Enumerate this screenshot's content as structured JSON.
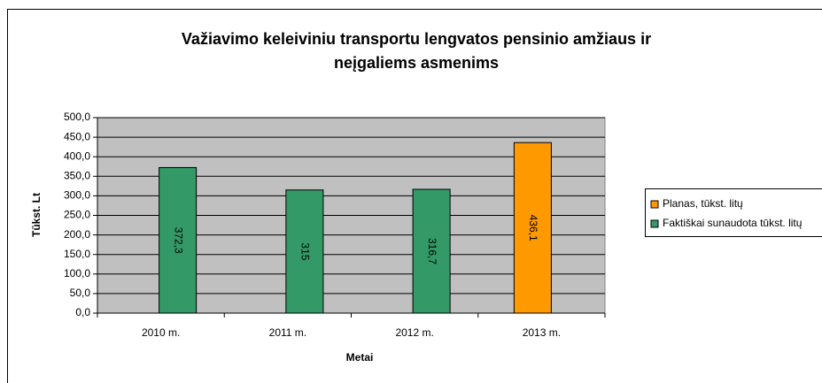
{
  "chart_data": {
    "type": "bar",
    "title": [
      "Važiavimo keleiviniu transportu lengvatos pensinio amžiaus ir",
      "neįgaliems asmenims"
    ],
    "x_label": "Metai",
    "y_label": "Tūkst. Lt",
    "categories": [
      "2010 m.",
      "2011 m.",
      "2012 m.",
      "2013 m."
    ],
    "series": [
      {
        "name": "Planas, tūkst. litų",
        "color": "#ff9900",
        "values": [
          null,
          null,
          null,
          436.1
        ],
        "value_labels": [
          null,
          null,
          null,
          "436,1"
        ]
      },
      {
        "name": "Faktiškai sunaudota tūkst. litų",
        "color": "#339966",
        "values": [
          372.3,
          315,
          316.7,
          null
        ],
        "value_labels": [
          "372,3",
          "315",
          "316,7",
          null
        ]
      }
    ],
    "ylim": [
      0,
      500
    ],
    "yticks": [
      {
        "value": 0,
        "label": "0,0"
      },
      {
        "value": 50,
        "label": "50,0"
      },
      {
        "value": 100,
        "label": "100,0"
      },
      {
        "value": 150,
        "label": "150,0"
      },
      {
        "value": 200,
        "label": "200,0"
      },
      {
        "value": 250,
        "label": "250,0"
      },
      {
        "value": 300,
        "label": "300,0"
      },
      {
        "value": 350,
        "label": "350,0"
      },
      {
        "value": 400,
        "label": "400,0"
      },
      {
        "value": 450,
        "label": "450,0"
      },
      {
        "value": 500,
        "label": "500,0"
      }
    ],
    "grid": true,
    "legend": "right"
  }
}
